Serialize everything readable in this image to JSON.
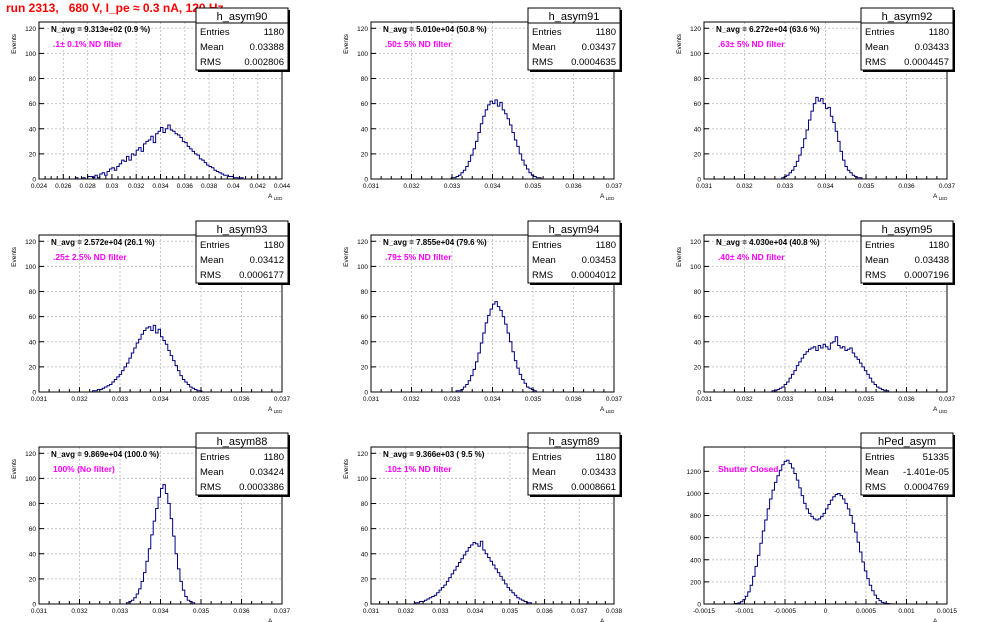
{
  "page_title": "run 2313,   680 V, I_pe ≈ 0.3 nA, 120 Hz",
  "colors": {
    "hist_line": "#00007f",
    "grid": "#c8c8c8",
    "filter_text": "#ff00ff",
    "title_text": "#ff0000"
  },
  "chart_data": [
    {
      "type": "bar",
      "name": "h_asym90",
      "ylabel": "Events",
      "xlabel": "A_LED",
      "annotation": "N_avg = 9.313e+02 (0.9 %)",
      "filter": ".1± 0.1% ND filter",
      "stats": [
        [
          "Entries",
          "1180"
        ],
        [
          "Mean",
          "0.03388"
        ],
        [
          "RMS",
          "0.002806"
        ]
      ],
      "xlim": [
        0.024,
        0.044
      ],
      "ylim": [
        0,
        125
      ],
      "xticks": [
        0.024,
        0.026,
        0.028,
        0.03,
        0.032,
        0.034,
        0.036,
        0.038,
        0.04,
        0.042,
        0.044
      ],
      "xtick_labels": [
        "0.024",
        "0.026",
        "0.028",
        "0.03",
        "0.032",
        "0.034",
        "0.036",
        "0.038",
        "0.04",
        "0.042",
        "0.044"
      ],
      "yticks": [
        0,
        20,
        40,
        60,
        80,
        100,
        120
      ],
      "x_start": 0.024,
      "bin_width": 0.0002,
      "values": [
        0,
        0,
        0,
        0,
        0,
        0,
        0,
        0,
        0,
        0,
        0,
        0,
        0,
        0,
        0,
        1,
        0,
        0,
        1,
        0,
        2,
        2,
        1,
        3,
        1,
        4,
        5,
        3,
        6,
        8,
        9,
        7,
        10,
        12,
        15,
        14,
        18,
        15,
        20,
        19,
        23,
        25,
        22,
        28,
        30,
        31,
        34,
        29,
        36,
        38,
        41,
        37,
        40,
        43,
        39,
        38,
        36,
        35,
        33,
        30,
        29,
        26,
        24,
        22,
        20,
        19,
        16,
        15,
        13,
        11,
        10,
        9,
        7,
        6,
        5,
        4,
        3,
        3,
        2,
        2,
        1,
        1,
        0,
        1,
        0,
        0,
        0,
        0,
        0,
        0,
        0,
        0,
        0,
        0,
        0,
        0,
        0,
        0,
        0,
        0
      ]
    },
    {
      "type": "bar",
      "name": "h_asym91",
      "ylabel": "Events",
      "xlabel": "A_LED",
      "annotation": "N_avg = 5.010e+04 (50.8 %)",
      "filter": ".50± 5% ND filter",
      "stats": [
        [
          "Entries",
          "1180"
        ],
        [
          "Mean",
          "0.03437"
        ],
        [
          "RMS",
          "0.0004635"
        ]
      ],
      "xlim": [
        0.031,
        0.037
      ],
      "ylim": [
        0,
        125
      ],
      "xticks": [
        0.031,
        0.032,
        0.033,
        0.034,
        0.035,
        0.036,
        0.037
      ],
      "xtick_labels": [
        "0.031",
        "0.032",
        "0.033",
        "0.034",
        "0.035",
        "0.036",
        "0.037"
      ],
      "yticks": [
        0,
        20,
        40,
        60,
        80,
        100,
        120
      ],
      "x_start": 0.031,
      "bin_width": 6e-05,
      "values": [
        0,
        0,
        0,
        0,
        0,
        0,
        0,
        0,
        0,
        0,
        0,
        0,
        0,
        0,
        0,
        0,
        0,
        0,
        0,
        0,
        0,
        0,
        0,
        0,
        0,
        0,
        0,
        0,
        0,
        0,
        0,
        0,
        0,
        1,
        1,
        2,
        3,
        5,
        7,
        10,
        14,
        19,
        24,
        30,
        37,
        44,
        50,
        55,
        59,
        62,
        60,
        63,
        58,
        61,
        55,
        52,
        48,
        43,
        37,
        31,
        26,
        20,
        15,
        11,
        8,
        5,
        3,
        2,
        1,
        1,
        0,
        0,
        0,
        0,
        0,
        0,
        0,
        0,
        0,
        0,
        0,
        0,
        0,
        0,
        0,
        0,
        0,
        0,
        0,
        0,
        0,
        0,
        0,
        0,
        0,
        0,
        0,
        0,
        0,
        0
      ]
    },
    {
      "type": "bar",
      "name": "h_asym92",
      "ylabel": "Events",
      "xlabel": "A_LED",
      "annotation": "N_avg = 6.272e+04 (63.6 %)",
      "filter": ".63± 5% ND filter",
      "stats": [
        [
          "Entries",
          "1180"
        ],
        [
          "Mean",
          "0.03433"
        ],
        [
          "RMS",
          "0.0004457"
        ]
      ],
      "xlim": [
        0.031,
        0.037
      ],
      "ylim": [
        0,
        125
      ],
      "xticks": [
        0.031,
        0.032,
        0.033,
        0.034,
        0.035,
        0.036,
        0.037
      ],
      "xtick_labels": [
        "0.031",
        "0.032",
        "0.033",
        "0.034",
        "0.035",
        "0.036",
        "0.037"
      ],
      "yticks": [
        0,
        20,
        40,
        60,
        80,
        100,
        120
      ],
      "x_start": 0.031,
      "bin_width": 6e-05,
      "values": [
        0,
        0,
        0,
        0,
        0,
        0,
        0,
        0,
        0,
        0,
        0,
        0,
        0,
        0,
        0,
        0,
        0,
        0,
        0,
        0,
        0,
        0,
        0,
        0,
        0,
        0,
        0,
        0,
        0,
        0,
        0,
        0,
        1,
        2,
        3,
        5,
        7,
        10,
        14,
        19,
        25,
        32,
        39,
        47,
        54,
        60,
        65,
        62,
        64,
        60,
        56,
        57,
        50,
        45,
        38,
        30,
        22,
        15,
        10,
        7,
        5,
        3,
        2,
        1,
        1,
        0,
        0,
        0,
        0,
        0,
        0,
        0,
        0,
        0,
        0,
        0,
        0,
        0,
        0,
        0,
        0,
        0,
        0,
        0,
        0,
        0,
        0,
        0,
        0,
        0,
        0,
        0,
        0,
        0,
        0,
        0,
        0,
        0,
        0,
        0
      ]
    },
    {
      "type": "bar",
      "name": "h_asym93",
      "ylabel": "Events",
      "xlabel": "A_LED",
      "annotation": "N_avg = 2.572e+04 (26.1 %)",
      "filter": ".25± 2.5% ND filter",
      "stats": [
        [
          "Entries",
          "1180"
        ],
        [
          "Mean",
          "0.03412"
        ],
        [
          "RMS",
          "0.0006177"
        ]
      ],
      "xlim": [
        0.031,
        0.037
      ],
      "ylim": [
        0,
        125
      ],
      "xticks": [
        0.031,
        0.032,
        0.033,
        0.034,
        0.035,
        0.036,
        0.037
      ],
      "xtick_labels": [
        "0.031",
        "0.032",
        "0.033",
        "0.034",
        "0.035",
        "0.036",
        "0.037"
      ],
      "yticks": [
        0,
        20,
        40,
        60,
        80,
        100,
        120
      ],
      "x_start": 0.031,
      "bin_width": 6e-05,
      "values": [
        0,
        0,
        0,
        0,
        0,
        0,
        0,
        0,
        0,
        0,
        0,
        0,
        0,
        0,
        0,
        0,
        0,
        0,
        0,
        0,
        0,
        0,
        1,
        1,
        2,
        2,
        3,
        4,
        5,
        6,
        8,
        10,
        12,
        14,
        17,
        20,
        23,
        27,
        31,
        35,
        39,
        42,
        46,
        49,
        51,
        52,
        49,
        53,
        47,
        50,
        44,
        41,
        38,
        33,
        29,
        25,
        21,
        17,
        13,
        10,
        8,
        6,
        4,
        3,
        2,
        1,
        1,
        0,
        0,
        0,
        0,
        0,
        0,
        0,
        0,
        0,
        0,
        0,
        0,
        0,
        0,
        0,
        0,
        0,
        0,
        0,
        0,
        0,
        0,
        0,
        0,
        0,
        0,
        0,
        0,
        0,
        0,
        0,
        0,
        0
      ]
    },
    {
      "type": "bar",
      "name": "h_asym94",
      "ylabel": "Events",
      "xlabel": "A_LED",
      "annotation": "N_avg = 7.855e+04 (79.6 %)",
      "filter": ".79± 5% ND filter",
      "stats": [
        [
          "Entries",
          "1180"
        ],
        [
          "Mean",
          "0.03453"
        ],
        [
          "RMS",
          "0.0004012"
        ]
      ],
      "xlim": [
        0.031,
        0.037
      ],
      "ylim": [
        0,
        125
      ],
      "xticks": [
        0.031,
        0.032,
        0.033,
        0.034,
        0.035,
        0.036,
        0.037
      ],
      "xtick_labels": [
        "0.031",
        "0.032",
        "0.033",
        "0.034",
        "0.035",
        "0.036",
        "0.037"
      ],
      "yticks": [
        0,
        20,
        40,
        60,
        80,
        100,
        120
      ],
      "x_start": 0.031,
      "bin_width": 6e-05,
      "values": [
        0,
        0,
        0,
        0,
        0,
        0,
        0,
        0,
        0,
        0,
        0,
        0,
        0,
        0,
        0,
        0,
        0,
        0,
        0,
        0,
        0,
        0,
        0,
        0,
        0,
        0,
        0,
        0,
        0,
        0,
        0,
        0,
        0,
        0,
        0,
        1,
        1,
        2,
        4,
        6,
        9,
        13,
        18,
        24,
        31,
        39,
        47,
        55,
        61,
        66,
        70,
        72,
        68,
        65,
        60,
        54,
        47,
        40,
        32,
        25,
        19,
        14,
        10,
        7,
        4,
        3,
        2,
        1,
        0,
        0,
        0,
        0,
        0,
        0,
        0,
        0,
        0,
        0,
        0,
        0,
        0,
        0,
        0,
        0,
        0,
        0,
        0,
        0,
        0,
        0,
        0,
        0,
        0,
        0,
        0,
        0,
        0,
        0,
        0,
        0
      ]
    },
    {
      "type": "bar",
      "name": "h_asym95",
      "ylabel": "Events",
      "xlabel": "A_LED",
      "annotation": "N_avg = 4.030e+04 (40.8 %)",
      "filter": ".40± 4% ND filter",
      "stats": [
        [
          "Entries",
          "1180"
        ],
        [
          "Mean",
          "0.03438"
        ],
        [
          "RMS",
          "0.0007196"
        ]
      ],
      "xlim": [
        0.031,
        0.037
      ],
      "ylim": [
        0,
        125
      ],
      "xticks": [
        0.031,
        0.032,
        0.033,
        0.034,
        0.035,
        0.036,
        0.037
      ],
      "xtick_labels": [
        "0.031",
        "0.032",
        "0.033",
        "0.034",
        "0.035",
        "0.036",
        "0.037"
      ],
      "yticks": [
        0,
        20,
        40,
        60,
        80,
        100,
        120
      ],
      "x_start": 0.031,
      "bin_width": 6e-05,
      "values": [
        0,
        0,
        0,
        0,
        0,
        0,
        0,
        0,
        0,
        0,
        0,
        0,
        0,
        0,
        0,
        0,
        0,
        0,
        0,
        0,
        0,
        0,
        0,
        0,
        0,
        0,
        0,
        0,
        1,
        1,
        2,
        3,
        4,
        6,
        8,
        11,
        14,
        17,
        21,
        24,
        27,
        30,
        32,
        34,
        35,
        36,
        33,
        37,
        35,
        38,
        36,
        34,
        39,
        40,
        44,
        37,
        35,
        36,
        33,
        34,
        35,
        31,
        28,
        26,
        23,
        20,
        17,
        14,
        11,
        8,
        6,
        4,
        3,
        2,
        1,
        1,
        0,
        0,
        0,
        0,
        0,
        0,
        0,
        0,
        0,
        0,
        0,
        0,
        0,
        0,
        0,
        0,
        0,
        0,
        0,
        0,
        0,
        0,
        0,
        0
      ]
    },
    {
      "type": "bar",
      "name": "h_asym88",
      "ylabel": "Events",
      "xlabel": "A_LED",
      "annotation": "N_avg = 9.869e+04 (100.0 %)",
      "filter": "100% (No filter)",
      "stats": [
        [
          "Entries",
          "1180"
        ],
        [
          "Mean",
          "0.03424"
        ],
        [
          "RMS",
          "0.0003386"
        ]
      ],
      "xlim": [
        0.031,
        0.037
      ],
      "ylim": [
        0,
        125
      ],
      "xticks": [
        0.031,
        0.032,
        0.033,
        0.034,
        0.035,
        0.036,
        0.037
      ],
      "xtick_labels": [
        "0.031",
        "0.032",
        "0.033",
        "0.034",
        "0.035",
        "0.036",
        "0.037"
      ],
      "yticks": [
        0,
        20,
        40,
        60,
        80,
        100,
        120
      ],
      "x_start": 0.031,
      "bin_width": 6e-05,
      "values": [
        0,
        0,
        0,
        0,
        0,
        0,
        0,
        0,
        0,
        0,
        0,
        0,
        0,
        0,
        0,
        0,
        0,
        0,
        0,
        0,
        0,
        0,
        0,
        0,
        0,
        0,
        0,
        0,
        0,
        0,
        0,
        0,
        0,
        0,
        0,
        0,
        1,
        2,
        3,
        5,
        8,
        12,
        18,
        25,
        34,
        44,
        55,
        66,
        76,
        85,
        92,
        95,
        88,
        80,
        68,
        54,
        40,
        28,
        18,
        11,
        6,
        3,
        2,
        1,
        0,
        0,
        0,
        0,
        0,
        0,
        0,
        0,
        0,
        0,
        0,
        0,
        0,
        0,
        0,
        0,
        0,
        0,
        0,
        0,
        0,
        0,
        0,
        0,
        0,
        0,
        0,
        0,
        0,
        0,
        0,
        0,
        0,
        0,
        0,
        0
      ]
    },
    {
      "type": "bar",
      "name": "h_asym89",
      "ylabel": "Events",
      "xlabel": "A_LED",
      "annotation": "N_avg = 9.366e+03 ( 9.5 %)",
      "filter": ".10± 1% ND filter",
      "stats": [
        [
          "Entries",
          "1180"
        ],
        [
          "Mean",
          "0.03433"
        ],
        [
          "RMS",
          "0.0008661"
        ]
      ],
      "xlim": [
        0.031,
        0.038
      ],
      "ylim": [
        0,
        125
      ],
      "xticks": [
        0.031,
        0.032,
        0.033,
        0.034,
        0.035,
        0.036,
        0.037,
        0.038
      ],
      "xtick_labels": [
        "0.031",
        "0.032",
        "0.033",
        "0.034",
        "0.035",
        "0.036",
        "0.037",
        "0.038"
      ],
      "yticks": [
        0,
        20,
        40,
        60,
        80,
        100,
        120
      ],
      "x_start": 0.031,
      "bin_width": 7e-05,
      "values": [
        0,
        0,
        0,
        0,
        0,
        0,
        0,
        0,
        0,
        0,
        0,
        0,
        0,
        0,
        0,
        0,
        0,
        0,
        1,
        1,
        2,
        2,
        3,
        4,
        5,
        6,
        7,
        9,
        11,
        13,
        15,
        18,
        21,
        24,
        27,
        30,
        33,
        36,
        39,
        42,
        45,
        47,
        49,
        48,
        46,
        50,
        43,
        40,
        37,
        34,
        31,
        28,
        25,
        22,
        19,
        16,
        13,
        11,
        9,
        7,
        5,
        4,
        3,
        2,
        1,
        1,
        0,
        0,
        0,
        0,
        0,
        0,
        0,
        0,
        0,
        0,
        0,
        0,
        0,
        0,
        0,
        0,
        0,
        0,
        0,
        0,
        0,
        0,
        0,
        0,
        0,
        0,
        0,
        0,
        0,
        0,
        0,
        0,
        0,
        0
      ]
    },
    {
      "type": "bar",
      "name": "hPed_asym",
      "ylabel": "",
      "xlabel": "A_LED",
      "annotation": "",
      "filter": "Shutter Closed",
      "stats": [
        [
          "Entries",
          "51335"
        ],
        [
          "Mean",
          "-1.401e-05"
        ],
        [
          "RMS",
          "0.0004769"
        ]
      ],
      "xlim": [
        -0.0015,
        0.0015
      ],
      "ylim": [
        0,
        1420
      ],
      "xticks": [
        -0.0015,
        -0.001,
        -0.0005,
        0,
        0.0005,
        0.001,
        0.0015
      ],
      "xtick_labels": [
        "-0.0015",
        "-0.001",
        "-0.0005",
        "0",
        "0.0005",
        "0.001",
        "0.0015"
      ],
      "yticks": [
        0,
        200,
        400,
        600,
        800,
        1000,
        1200
      ],
      "x_start": -0.0015,
      "bin_width": 3e-05,
      "values": [
        0,
        0,
        0,
        0,
        0,
        0,
        0,
        0,
        0,
        0,
        0,
        0,
        0,
        5,
        10,
        20,
        40,
        70,
        110,
        170,
        250,
        340,
        440,
        550,
        660,
        760,
        860,
        950,
        1030,
        1100,
        1160,
        1210,
        1260,
        1290,
        1300,
        1270,
        1230,
        1180,
        1120,
        1050,
        980,
        910,
        860,
        820,
        790,
        770,
        760,
        770,
        790,
        820,
        860,
        900,
        940,
        970,
        990,
        1000,
        980,
        950,
        910,
        860,
        800,
        730,
        650,
        560,
        470,
        380,
        300,
        230,
        170,
        120,
        80,
        50,
        30,
        15,
        8,
        4,
        2,
        1,
        0,
        0,
        0,
        0,
        0,
        0,
        0,
        0,
        0,
        0,
        0,
        0,
        0,
        0,
        0,
        0,
        0,
        0,
        0,
        0,
        0,
        0
      ]
    }
  ]
}
